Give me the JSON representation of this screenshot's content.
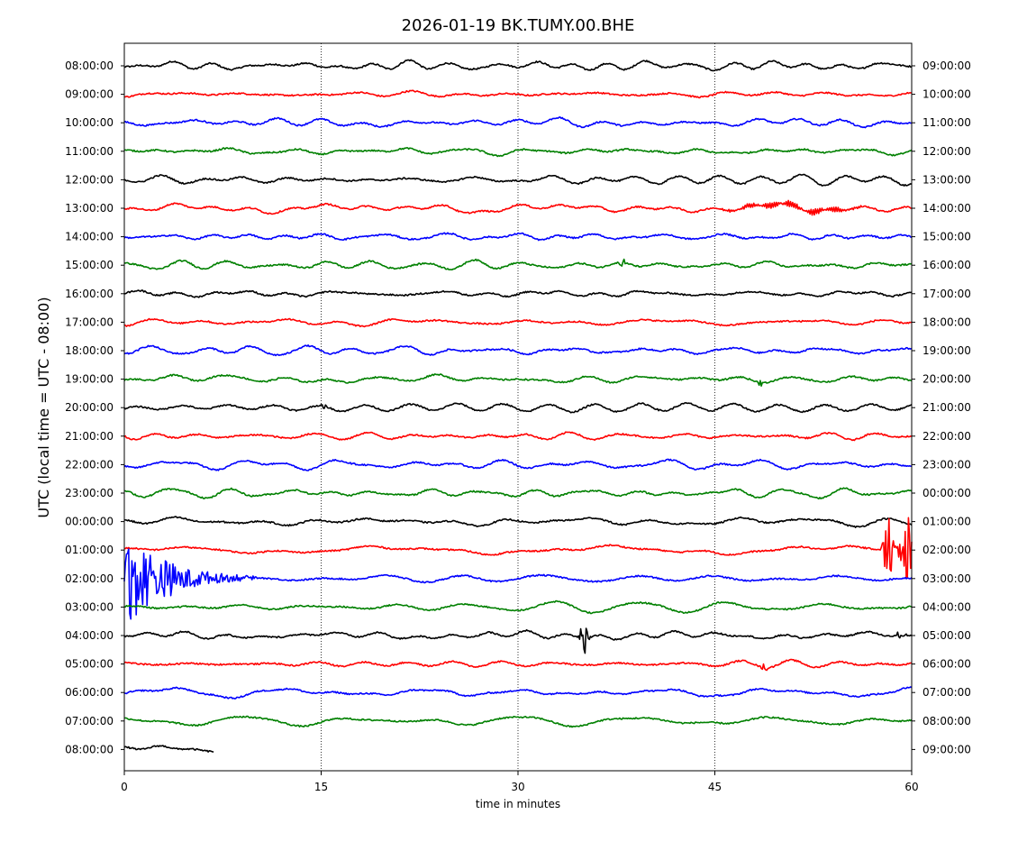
{
  "chart_data": {
    "type": "line",
    "title": "2026-01-19 BK.TUMY.00.BHE",
    "xlabel": "time in minutes",
    "ylabel": "UTC (local time = UTC - 08:00)",
    "xlim": [
      0,
      60
    ],
    "x_ticks": [
      0,
      15,
      30,
      45,
      60
    ],
    "x_tick_labels": [
      "0",
      "15",
      "30",
      "45",
      "60"
    ],
    "grid": "vertical dotted lines at 15, 30, 45",
    "left_tick_labels": [
      "08:00:00",
      "09:00:00",
      "10:00:00",
      "11:00:00",
      "12:00:00",
      "13:00:00",
      "14:00:00",
      "15:00:00",
      "16:00:00",
      "17:00:00",
      "18:00:00",
      "19:00:00",
      "20:00:00",
      "21:00:00",
      "22:00:00",
      "23:00:00",
      "00:00:00",
      "01:00:00",
      "02:00:00",
      "03:00:00",
      "04:00:00",
      "05:00:00",
      "06:00:00",
      "07:00:00",
      "08:00:00"
    ],
    "right_tick_labels": [
      "09:00:00",
      "10:00:00",
      "11:00:00",
      "12:00:00",
      "13:00:00",
      "14:00:00",
      "15:00:00",
      "16:00:00",
      "17:00:00",
      "18:00:00",
      "19:00:00",
      "20:00:00",
      "21:00:00",
      "22:00:00",
      "23:00:00",
      "00:00:00",
      "01:00:00",
      "02:00:00",
      "03:00:00",
      "04:00:00",
      "05:00:00",
      "06:00:00",
      "07:00:00",
      "08:00:00",
      "09:00:00"
    ],
    "color_cycle": [
      "#000000",
      "#ff0000",
      "#0000ff",
      "#008000"
    ],
    "series": [
      {
        "color": "#000000",
        "end_minute": 60,
        "events": []
      },
      {
        "color": "#ff0000",
        "end_minute": 60,
        "events": []
      },
      {
        "color": "#0000ff",
        "end_minute": 60,
        "events": []
      },
      {
        "color": "#008000",
        "end_minute": 60,
        "events": []
      },
      {
        "color": "#000000",
        "end_minute": 60,
        "events": []
      },
      {
        "color": "#ff0000",
        "end_minute": 60,
        "events": [
          {
            "start": 45,
            "end": 57,
            "amp": 2.2,
            "kind": "wave"
          }
        ]
      },
      {
        "color": "#0000ff",
        "end_minute": 60,
        "events": []
      },
      {
        "color": "#008000",
        "end_minute": 60,
        "events": [
          {
            "start": 37.5,
            "end": 38.8,
            "amp": 4,
            "kind": "burst"
          }
        ]
      },
      {
        "color": "#000000",
        "end_minute": 60,
        "events": []
      },
      {
        "color": "#ff0000",
        "end_minute": 60,
        "events": []
      },
      {
        "color": "#0000ff",
        "end_minute": 60,
        "events": []
      },
      {
        "color": "#008000",
        "end_minute": 60,
        "events": [
          {
            "start": 48.2,
            "end": 49,
            "amp": 2.5,
            "kind": "burst"
          }
        ]
      },
      {
        "color": "#000000",
        "end_minute": 60,
        "events": [
          {
            "start": 15,
            "end": 15.6,
            "amp": 2.5,
            "kind": "burst"
          }
        ]
      },
      {
        "color": "#ff0000",
        "end_minute": 60,
        "events": []
      },
      {
        "color": "#0000ff",
        "end_minute": 60,
        "events": []
      },
      {
        "color": "#008000",
        "end_minute": 60,
        "events": []
      },
      {
        "color": "#000000",
        "end_minute": 60,
        "events": []
      },
      {
        "color": "#ff0000",
        "end_minute": 60,
        "events": [
          {
            "start": 57.6,
            "end": 60,
            "amp": 40,
            "kind": "quake"
          }
        ]
      },
      {
        "color": "#0000ff",
        "end_minute": 60,
        "events": [
          {
            "start": 0,
            "end": 10,
            "amp": 40,
            "kind": "coda"
          }
        ]
      },
      {
        "color": "#008000",
        "end_minute": 60,
        "events": []
      },
      {
        "color": "#000000",
        "end_minute": 60,
        "events": [
          {
            "start": 34.6,
            "end": 35.8,
            "amp": 14,
            "kind": "burst"
          },
          {
            "start": 58.5,
            "end": 60,
            "amp": 3,
            "kind": "burst"
          }
        ]
      },
      {
        "color": "#ff0000",
        "end_minute": 60,
        "events": [
          {
            "start": 48.5,
            "end": 49.5,
            "amp": 4,
            "kind": "burst"
          }
        ]
      },
      {
        "color": "#0000ff",
        "end_minute": 60,
        "events": []
      },
      {
        "color": "#008000",
        "end_minute": 60,
        "events": []
      },
      {
        "color": "#000000",
        "end_minute": 6.8,
        "events": []
      }
    ]
  }
}
